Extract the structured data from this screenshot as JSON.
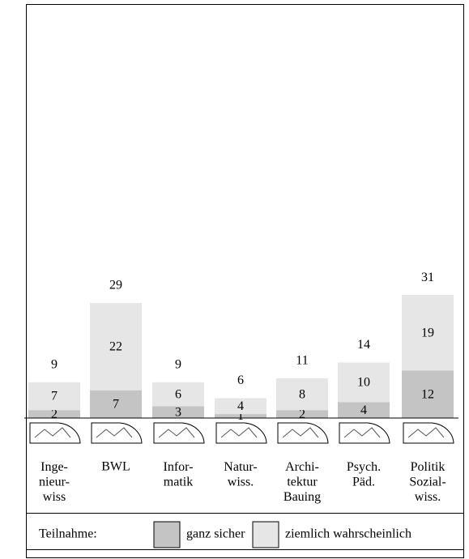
{
  "chart_data": {
    "type": "stacked-bar",
    "categories": [
      "Inge-\nnieur-\nwiss",
      "BWL",
      "Infor-\nmatik",
      "Natur-\nwiss.",
      "Archi-\ntektur\nBauing",
      "Psych.\nPäd.",
      "Politik\nSozial-\nwiss."
    ],
    "series": [
      {
        "name": "ganz sicher",
        "color": "#c4c4c4",
        "values": [
          2,
          7,
          3,
          1,
          2,
          4,
          12
        ]
      },
      {
        "name": "ziemlich wahrscheinlich",
        "color": "#e6e6e6",
        "values": [
          7,
          22,
          6,
          4,
          8,
          10,
          19
        ]
      }
    ],
    "totals": [
      9,
      29,
      9,
      6,
      11,
      14,
      31
    ],
    "legend_title": "Teilnahme:"
  }
}
